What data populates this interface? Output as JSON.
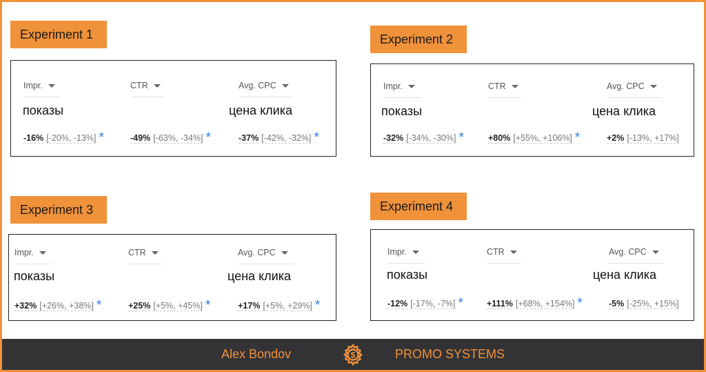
{
  "experiments": [
    {
      "label": "Experiment 1",
      "metrics": [
        {
          "name": "Impr.",
          "ru": "показы",
          "value": "-16%",
          "range": "[-20%, -13%]",
          "star": "*"
        },
        {
          "name": "CTR",
          "ru": "",
          "value": "-49%",
          "range": "[-63%, -34%]",
          "star": "*"
        },
        {
          "name": "Avg. CPC",
          "ru": "цена клика",
          "value": "-37%",
          "range": "[-42%, -32%]",
          "star": "*"
        }
      ]
    },
    {
      "label": "Experiment 2",
      "metrics": [
        {
          "name": "Impr.",
          "ru": "показы",
          "value": "-32%",
          "range": "[-34%, -30%]",
          "star": "*"
        },
        {
          "name": "CTR",
          "ru": "",
          "value": "+80%",
          "range": "[+55%, +106%]",
          "star": "*"
        },
        {
          "name": "Avg. CPC",
          "ru": "цена клика",
          "value": "+2%",
          "range": "[-13%, +17%]",
          "star": ""
        }
      ]
    },
    {
      "label": "Experiment 3",
      "metrics": [
        {
          "name": "Impr.",
          "ru": "показы",
          "value": "+32%",
          "range": "[+26%, +38%]",
          "star": "*"
        },
        {
          "name": "CTR",
          "ru": "",
          "value": "+25%",
          "range": "[+5%, +45%]",
          "star": "*"
        },
        {
          "name": "Avg. CPC",
          "ru": "цена клика",
          "value": "+17%",
          "range": "[+5%, +29%]",
          "star": "*"
        }
      ]
    },
    {
      "label": "Experiment 4",
      "metrics": [
        {
          "name": "Impr.",
          "ru": "показы",
          "value": "-12%",
          "range": "[-17%, -7%]",
          "star": "*"
        },
        {
          "name": "CTR",
          "ru": "",
          "value": "+111%",
          "range": "[+68%, +154%]",
          "star": "*"
        },
        {
          "name": "Avg. CPC",
          "ru": "цена клика",
          "value": "-5%",
          "range": "[-25%, +15%]",
          "star": ""
        }
      ]
    }
  ],
  "footer": {
    "author": "Alex Bondov",
    "logo_icon": "gear-dollar-icon",
    "brand": "PROMO SYSTEMS"
  },
  "colors": {
    "accent": "#f0923a",
    "footer_bg": "#333336",
    "star": "#2f7be6"
  }
}
